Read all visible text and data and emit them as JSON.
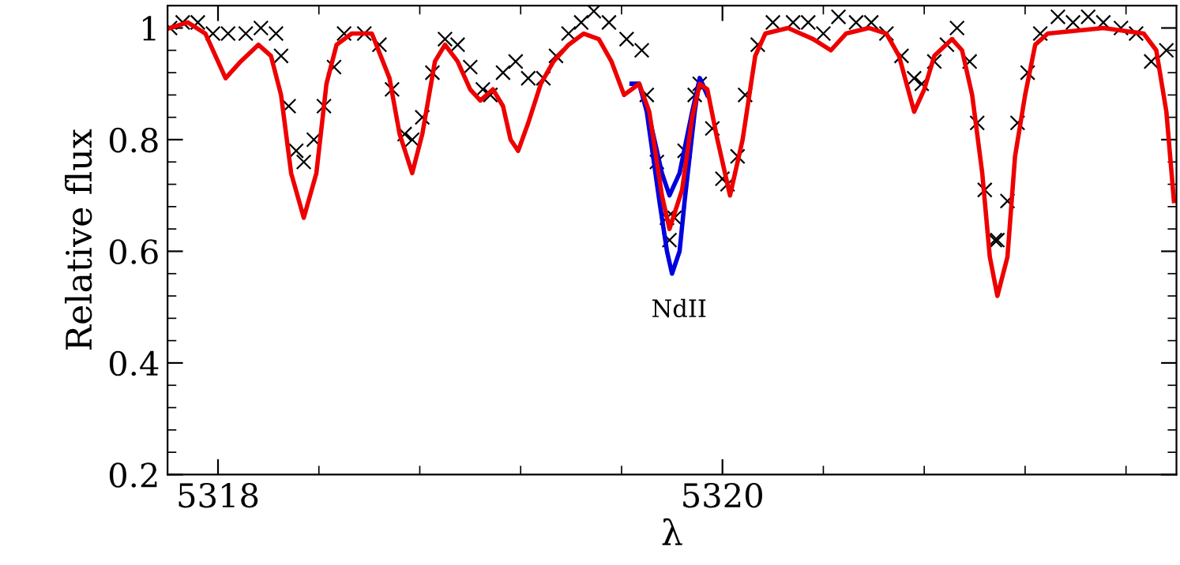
{
  "chart_data": {
    "type": "line",
    "xlabel": "λ",
    "ylabel": "Relative flux",
    "xlim": [
      5317.8,
      5321.8
    ],
    "ylim": [
      0.2,
      1.04
    ],
    "xticks": [
      5318,
      {
        "value": 5318.4,
        "label": null
      },
      {
        "value": 5318.8,
        "label": null
      },
      {
        "value": 5319.2,
        "label": null
      },
      {
        "value": 5319.6,
        "label": null
      },
      5320,
      {
        "value": 5320.4,
        "label": null
      },
      {
        "value": 5320.8,
        "label": null
      },
      {
        "value": 5321.2,
        "label": null
      },
      {
        "value": 5321.6,
        "label": null
      }
    ],
    "yticks": [
      0.2,
      {
        "value": 0.24,
        "label": null
      },
      {
        "value": 0.28,
        "label": null
      },
      {
        "value": 0.32,
        "label": null
      },
      {
        "value": 0.36,
        "label": null
      },
      0.4,
      {
        "value": 0.44,
        "label": null
      },
      {
        "value": 0.48,
        "label": null
      },
      {
        "value": 0.52,
        "label": null
      },
      {
        "value": 0.56,
        "label": null
      },
      0.6,
      {
        "value": 0.64,
        "label": null
      },
      {
        "value": 0.68,
        "label": null
      },
      {
        "value": 0.72,
        "label": null
      },
      {
        "value": 0.76,
        "label": null
      },
      0.8,
      {
        "value": 0.84,
        "label": null
      },
      {
        "value": 0.88,
        "label": null
      },
      {
        "value": 0.92,
        "label": null
      },
      {
        "value": 0.96,
        "label": null
      },
      1
    ],
    "grid": false,
    "annotations": [
      "NdII"
    ],
    "series": [
      {
        "type": "scatter",
        "marker": "cross",
        "color": "#000000",
        "x": [
          5317.81,
          5317.86,
          5317.92,
          5317.98,
          5318.04,
          5318.11,
          5318.17,
          5318.23,
          5318.25,
          5318.28,
          5318.31,
          5318.34,
          5318.38,
          5318.42,
          5318.46,
          5318.5,
          5318.58,
          5318.64,
          5318.69,
          5318.74,
          5318.77,
          5318.81,
          5318.85,
          5318.9,
          5318.95,
          5319.0,
          5319.05,
          5319.08,
          5319.13,
          5319.18,
          5319.23,
          5319.29,
          5319.34,
          5319.39,
          5319.44,
          5319.49,
          5319.55,
          5319.62,
          5319.68,
          5319.7,
          5319.74,
          5319.78,
          5319.79,
          5319.81,
          5319.85,
          5319.89,
          5319.91,
          5319.96,
          5320.0,
          5320.02,
          5320.06,
          5320.09,
          5320.14,
          5320.2,
          5320.28,
          5320.34,
          5320.4,
          5320.46,
          5320.53,
          5320.59,
          5320.65,
          5320.71,
          5320.76,
          5320.79,
          5320.84,
          5320.89,
          5320.93,
          5320.98,
          5321.01,
          5321.04,
          5321.08,
          5321.09,
          5321.13,
          5321.17,
          5321.21,
          5321.26,
          5321.33,
          5321.39,
          5321.45,
          5321.51,
          5321.58,
          5321.64,
          5321.7,
          5321.76
        ],
        "values": [
          1.0,
          1.01,
          1.01,
          0.99,
          0.99,
          0.99,
          1.0,
          0.99,
          0.95,
          0.86,
          0.78,
          0.76,
          0.8,
          0.86,
          0.93,
          0.99,
          0.99,
          0.97,
          0.89,
          0.81,
          0.8,
          0.84,
          0.92,
          0.98,
          0.97,
          0.93,
          0.89,
          0.88,
          0.92,
          0.94,
          0.91,
          0.91,
          0.95,
          0.99,
          1.01,
          1.03,
          1.01,
          0.98,
          0.96,
          0.88,
          0.76,
          0.66,
          0.62,
          0.66,
          0.78,
          0.88,
          0.9,
          0.82,
          0.73,
          0.72,
          0.77,
          0.88,
          0.97,
          1.01,
          1.01,
          1.01,
          0.99,
          1.02,
          1.01,
          1.01,
          0.99,
          0.95,
          0.91,
          0.9,
          0.94,
          0.97,
          1.0,
          0.94,
          0.83,
          0.71,
          0.62,
          0.62,
          0.69,
          0.83,
          0.92,
          0.99,
          1.02,
          1.01,
          1.02,
          1.01,
          1.0,
          0.99,
          0.94,
          0.96
        ]
      },
      {
        "color": "#0000dd",
        "x": [
          5319.64,
          5319.67,
          5319.7,
          5319.75,
          5319.78,
          5319.8,
          5319.83,
          5319.85,
          5319.89,
          5319.91,
          5319.94
        ],
        "values": [
          0.9,
          0.9,
          0.85,
          0.69,
          0.6,
          0.56,
          0.6,
          0.69,
          0.85,
          0.91,
          0.88
        ]
      },
      {
        "color": "#0000dd",
        "x": [
          5319.64,
          5319.67,
          5319.71,
          5319.76,
          5319.79,
          5319.83,
          5319.88,
          5319.91,
          5319.94
        ],
        "values": [
          0.9,
          0.9,
          0.84,
          0.74,
          0.7,
          0.74,
          0.85,
          0.91,
          0.88
        ]
      },
      {
        "color": "#ee0000",
        "x": [
          5317.81,
          5317.88,
          5317.95,
          5318.03,
          5318.09,
          5318.16,
          5318.21,
          5318.25,
          5318.29,
          5318.34,
          5318.39,
          5318.43,
          5318.47,
          5318.53,
          5318.61,
          5318.68,
          5318.72,
          5318.77,
          5318.81,
          5318.86,
          5318.9,
          5318.95,
          5319.0,
          5319.04,
          5319.09,
          5319.13,
          5319.16,
          5319.19,
          5319.23,
          5319.28,
          5319.33,
          5319.39,
          5319.45,
          5319.51,
          5319.56,
          5319.61,
          5319.64,
          5319.67,
          5319.71,
          5319.76,
          5319.79,
          5319.84,
          5319.88,
          5319.91,
          5319.94,
          5319.98,
          5320.03,
          5320.08,
          5320.13,
          5320.17,
          5320.26,
          5320.36,
          5320.43,
          5320.49,
          5320.58,
          5320.65,
          5320.7,
          5320.73,
          5320.76,
          5320.8,
          5320.84,
          5320.91,
          5320.95,
          5320.99,
          5321.03,
          5321.06,
          5321.09,
          5321.13,
          5321.16,
          5321.2,
          5321.24,
          5321.29,
          5321.51,
          5321.67,
          5321.72,
          5321.76,
          5321.79
        ],
        "values": [
          1.0,
          1.01,
          0.99,
          0.91,
          0.94,
          0.97,
          0.95,
          0.88,
          0.74,
          0.66,
          0.74,
          0.9,
          0.97,
          0.99,
          0.99,
          0.91,
          0.81,
          0.74,
          0.81,
          0.94,
          0.97,
          0.94,
          0.89,
          0.87,
          0.89,
          0.86,
          0.8,
          0.78,
          0.83,
          0.9,
          0.94,
          0.97,
          0.99,
          0.98,
          0.94,
          0.88,
          0.89,
          0.9,
          0.85,
          0.7,
          0.64,
          0.71,
          0.84,
          0.9,
          0.89,
          0.8,
          0.7,
          0.8,
          0.95,
          0.99,
          1.0,
          0.98,
          0.96,
          0.99,
          1.0,
          0.99,
          0.95,
          0.9,
          0.85,
          0.89,
          0.95,
          0.98,
          0.96,
          0.88,
          0.74,
          0.59,
          0.52,
          0.59,
          0.77,
          0.88,
          0.97,
          0.99,
          1.0,
          0.99,
          0.96,
          0.85,
          0.69
        ]
      }
    ]
  }
}
